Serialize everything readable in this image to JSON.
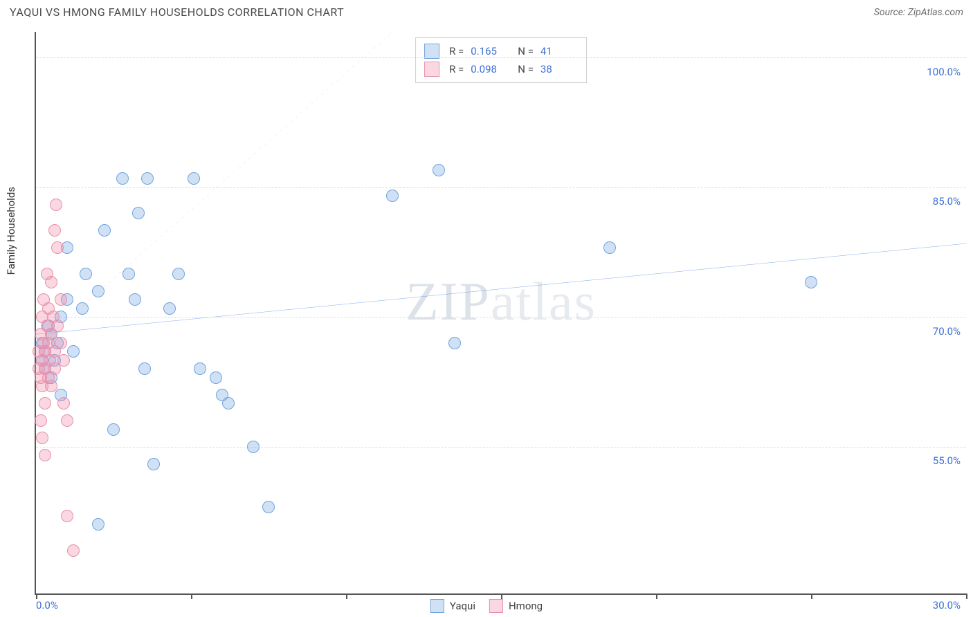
{
  "header": {
    "title": "YAQUI VS HMONG FAMILY HOUSEHOLDS CORRELATION CHART",
    "source": "Source: ZipAtlas.com"
  },
  "watermark": {
    "prefix": "ZIP",
    "suffix": "atlas"
  },
  "chart": {
    "type": "scatter",
    "y_axis_label": "Family Households",
    "x_range": [
      0,
      30
    ],
    "y_range": [
      38,
      103
    ],
    "y_ticks": [
      55.0,
      70.0,
      85.0,
      100.0
    ],
    "y_tick_labels": [
      "55.0%",
      "70.0%",
      "85.0%",
      "100.0%"
    ],
    "x_tick_positions": [
      0,
      5,
      10,
      15,
      20,
      25,
      30
    ],
    "x_axis_min_label": "0.0%",
    "x_axis_max_label": "30.0%",
    "grid_color": "#dcdcdc",
    "axis_color": "#555555",
    "tick_label_color": "#3b6fd6",
    "marker_radius": 9,
    "series": [
      {
        "name": "Yaqui",
        "fill": "rgba(120,170,230,0.35)",
        "stroke": "#6fa3dd",
        "r": 0.165,
        "n": 41,
        "trend": {
          "x1": 0,
          "y1": 68.0,
          "x2": 30,
          "y2": 78.5,
          "stroke": "#2f6fe0",
          "width": 2.5,
          "dash": "none"
        },
        "points": [
          [
            0.2,
            65
          ],
          [
            0.2,
            67
          ],
          [
            0.3,
            64
          ],
          [
            0.3,
            66
          ],
          [
            0.4,
            69
          ],
          [
            0.5,
            68
          ],
          [
            0.5,
            63
          ],
          [
            0.6,
            65
          ],
          [
            0.7,
            67
          ],
          [
            0.8,
            70
          ],
          [
            0.8,
            61
          ],
          [
            1.0,
            72
          ],
          [
            1.0,
            78
          ],
          [
            1.2,
            66
          ],
          [
            1.5,
            71
          ],
          [
            1.6,
            75
          ],
          [
            2.0,
            46
          ],
          [
            2.0,
            73
          ],
          [
            2.2,
            80
          ],
          [
            2.5,
            57
          ],
          [
            2.8,
            86
          ],
          [
            3.0,
            75
          ],
          [
            3.2,
            72
          ],
          [
            3.3,
            82
          ],
          [
            3.5,
            64
          ],
          [
            3.6,
            86
          ],
          [
            3.8,
            53
          ],
          [
            4.3,
            71
          ],
          [
            4.6,
            75
          ],
          [
            5.1,
            86
          ],
          [
            5.3,
            64
          ],
          [
            5.8,
            63
          ],
          [
            6.0,
            61
          ],
          [
            6.2,
            60
          ],
          [
            7.0,
            55
          ],
          [
            7.5,
            48
          ],
          [
            11.5,
            84
          ],
          [
            13.0,
            87
          ],
          [
            13.5,
            67
          ],
          [
            18.5,
            78
          ],
          [
            25.0,
            74
          ]
        ]
      },
      {
        "name": "Hmong",
        "fill": "rgba(240,140,170,0.35)",
        "stroke": "#e690ab",
        "r": 0.098,
        "n": 38,
        "trend": {
          "x1": 0,
          "y1": 66.5,
          "x2": 11.5,
          "y2": 103,
          "stroke": "#e88aa6",
          "width": 1.5,
          "dash": "5,5"
        },
        "points": [
          [
            0.1,
            64
          ],
          [
            0.1,
            66
          ],
          [
            0.15,
            68
          ],
          [
            0.15,
            63
          ],
          [
            0.2,
            70
          ],
          [
            0.2,
            65
          ],
          [
            0.2,
            62
          ],
          [
            0.25,
            67
          ],
          [
            0.25,
            72
          ],
          [
            0.3,
            66
          ],
          [
            0.3,
            60
          ],
          [
            0.3,
            64
          ],
          [
            0.35,
            75
          ],
          [
            0.35,
            69
          ],
          [
            0.4,
            67
          ],
          [
            0.4,
            63
          ],
          [
            0.4,
            71
          ],
          [
            0.45,
            65
          ],
          [
            0.5,
            68
          ],
          [
            0.5,
            74
          ],
          [
            0.5,
            62
          ],
          [
            0.55,
            70
          ],
          [
            0.6,
            66
          ],
          [
            0.6,
            80
          ],
          [
            0.6,
            64
          ],
          [
            0.65,
            83
          ],
          [
            0.7,
            78
          ],
          [
            0.7,
            69
          ],
          [
            0.8,
            72
          ],
          [
            0.8,
            67
          ],
          [
            0.9,
            65
          ],
          [
            0.9,
            60
          ],
          [
            1.0,
            58
          ],
          [
            1.0,
            47
          ],
          [
            1.2,
            43
          ],
          [
            0.15,
            58
          ],
          [
            0.2,
            56
          ],
          [
            0.3,
            54
          ]
        ]
      }
    ]
  },
  "legend_top": {
    "r_label": "R =",
    "n_label": "N ="
  },
  "legend_bottom": {
    "items": [
      "Yaqui",
      "Hmong"
    ]
  }
}
